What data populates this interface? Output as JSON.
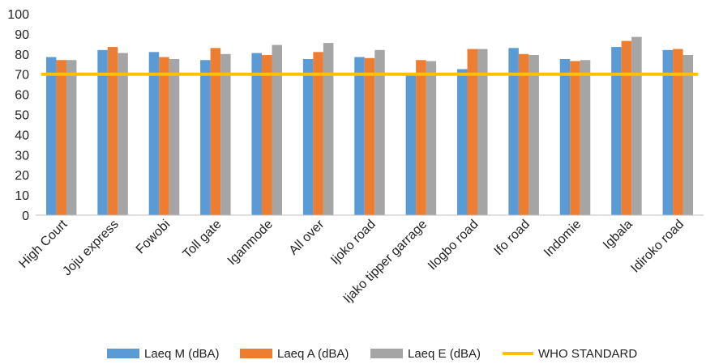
{
  "chart_data": {
    "type": "bar",
    "title": "",
    "xlabel": "",
    "ylabel": "",
    "ylim": [
      0,
      100
    ],
    "yticks": [
      0,
      10,
      20,
      30,
      40,
      50,
      60,
      70,
      80,
      90,
      100
    ],
    "grid": false,
    "legend_position": "bottom",
    "categories": [
      "High Court",
      "Joju express",
      "Fowobi",
      "Toll gate",
      "Iganmode",
      "All over",
      "Ijoko road",
      "Ijako tipper garrage",
      "Ilogbo road",
      "Ifo road",
      "Indomie",
      "Igbala",
      "Idiroko road"
    ],
    "series": [
      {
        "name": "Laeq M (dBA)",
        "color": "#5B9BD5",
        "values": [
          78.5,
          82,
          81,
          77,
          80.5,
          77.5,
          78.5,
          69.5,
          72.5,
          83,
          77.5,
          83.5,
          82
        ]
      },
      {
        "name": "Laeq A (dBA)",
        "color": "#ED7D31",
        "values": [
          77,
          83.5,
          78.5,
          83,
          79.5,
          81,
          78,
          77,
          82.5,
          80,
          76.5,
          86.5,
          82.5
        ]
      },
      {
        "name": "Laeq E (dBA)",
        "color": "#A5A5A5",
        "values": [
          77,
          80.5,
          77.5,
          80,
          84.5,
          85.5,
          82,
          76.5,
          82.5,
          79.5,
          77,
          88.5,
          79.5
        ]
      }
    ],
    "reference_line": {
      "name": "WHO STANDARD",
      "color": "#FFC000",
      "value": 70
    }
  }
}
